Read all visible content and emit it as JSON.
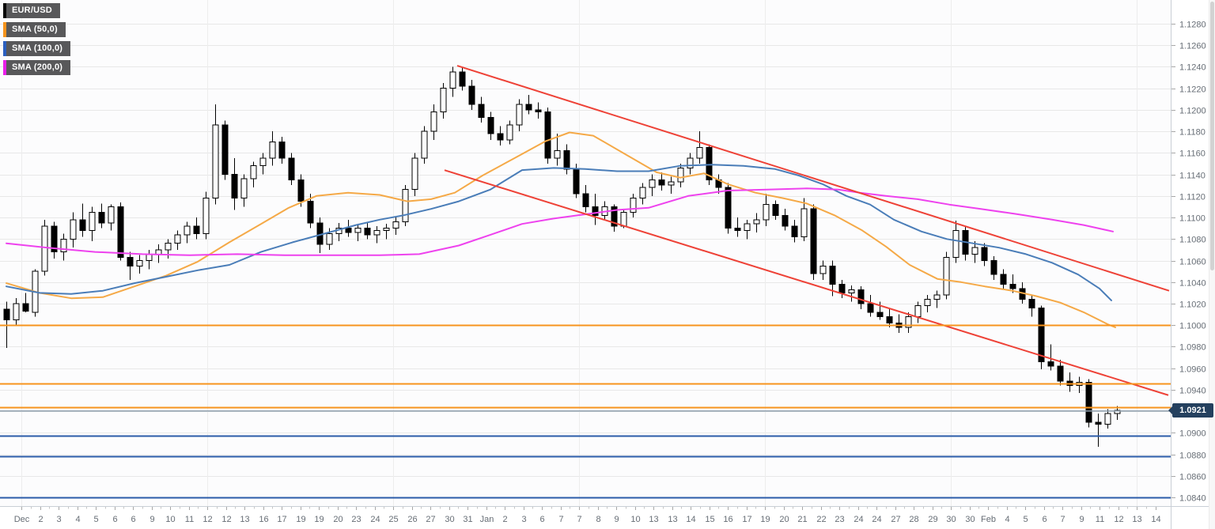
{
  "legend": {
    "items": [
      {
        "label": "EUR/USD",
        "accent_color": "#0a0a0a",
        "kind": "symbol"
      },
      {
        "label": "SMA (50,0)",
        "accent_color": "#f7941d",
        "kind": "indicator"
      },
      {
        "label": "SMA (100,0)",
        "accent_color": "#2b5fc0",
        "kind": "indicator"
      },
      {
        "label": "SMA (200,0)",
        "accent_color": "#e91fe9",
        "kind": "indicator"
      }
    ]
  },
  "price_axis": {
    "ticks": [
      "1.1280",
      "1.1260",
      "1.1240",
      "1.1220",
      "1.1200",
      "1.1180",
      "1.1160",
      "1.1140",
      "1.1120",
      "1.1100",
      "1.1080",
      "1.1060",
      "1.1040",
      "1.1020",
      "1.1000",
      "1.0980",
      "1.0960",
      "1.0940",
      "1.0920",
      "1.0900",
      "1.0880",
      "1.0860",
      "1.0840"
    ],
    "current_price": "1.0921",
    "badge_color": "#24405e",
    "tick_color": "#a7a7a7",
    "label_color": "#666d75"
  },
  "time_axis": {
    "labels": [
      "Dec",
      "2",
      "3",
      "4",
      "5",
      "6",
      "6",
      "9",
      "10",
      "11",
      "12",
      "12",
      "13",
      "16",
      "17",
      "19",
      "19",
      "20",
      "23",
      "24",
      "25",
      "26",
      "27",
      "30",
      "31",
      "Jan",
      "2",
      "3",
      "6",
      "7",
      "7",
      "8",
      "9",
      "10",
      "13",
      "13",
      "14",
      "15",
      "16",
      "17",
      "19",
      "20",
      "21",
      "22",
      "23",
      "24",
      "24",
      "27",
      "28",
      "29",
      "30",
      "30",
      "Feb",
      "4",
      "5",
      "6",
      "7",
      "9",
      "11",
      "12",
      "13",
      "14"
    ],
    "gridline_every": 10
  },
  "chart_data": {
    "type": "candlestick",
    "symbol": "EUR/USD",
    "ylabel": "price",
    "ylim": [
      1.0832,
      1.1302
    ],
    "grid": true,
    "up_color": "#ffffff",
    "down_color": "#000000",
    "outline_color": "#000000",
    "grid_color": "#e8e8e8",
    "vgrid_color": "#ededed",
    "plot_bg": "#fcfcfd",
    "candles": [
      [
        1.1015,
        1.1022,
        1.0979,
        1.1005
      ],
      [
        1.1005,
        1.1025,
        1.1,
        1.102
      ],
      [
        1.102,
        1.103,
        1.1012,
        1.1013
      ],
      [
        1.1012,
        1.1052,
        1.1008,
        1.105
      ],
      [
        1.105,
        1.1098,
        1.1046,
        1.1092
      ],
      [
        1.1092,
        1.1096,
        1.1062,
        1.1068
      ],
      [
        1.1068,
        1.1085,
        1.106,
        1.108
      ],
      [
        1.108,
        1.1105,
        1.1072,
        1.1098
      ],
      [
        1.1098,
        1.1113,
        1.1082,
        1.1088
      ],
      [
        1.1088,
        1.111,
        1.1078,
        1.1105
      ],
      [
        1.1105,
        1.1113,
        1.109,
        1.1095
      ],
      [
        1.1095,
        1.1112,
        1.1088,
        1.111
      ],
      [
        1.111,
        1.1114,
        1.106,
        1.1063
      ],
      [
        1.1063,
        1.1068,
        1.1042,
        1.1055
      ],
      [
        1.1055,
        1.1065,
        1.1048,
        1.106
      ],
      [
        1.106,
        1.107,
        1.1052,
        1.1066
      ],
      [
        1.1066,
        1.1075,
        1.1058,
        1.107
      ],
      [
        1.107,
        1.108,
        1.1062,
        1.1076
      ],
      [
        1.1076,
        1.1088,
        1.107,
        1.1084
      ],
      [
        1.1084,
        1.1096,
        1.1076,
        1.1092
      ],
      [
        1.1092,
        1.11,
        1.108,
        1.1085
      ],
      [
        1.1085,
        1.1124,
        1.108,
        1.1118
      ],
      [
        1.1118,
        1.1205,
        1.1112,
        1.1186
      ],
      [
        1.1186,
        1.119,
        1.1135,
        1.114
      ],
      [
        1.114,
        1.1155,
        1.1107,
        1.1118
      ],
      [
        1.1118,
        1.114,
        1.111,
        1.1136
      ],
      [
        1.1136,
        1.1152,
        1.1128,
        1.1148
      ],
      [
        1.1148,
        1.116,
        1.114,
        1.1155
      ],
      [
        1.1155,
        1.118,
        1.1148,
        1.117
      ],
      [
        1.117,
        1.1175,
        1.115,
        1.1155
      ],
      [
        1.1155,
        1.116,
        1.113,
        1.1135
      ],
      [
        1.1135,
        1.114,
        1.111,
        1.1115
      ],
      [
        1.1115,
        1.1122,
        1.109,
        1.1095
      ],
      [
        1.1095,
        1.11,
        1.1067,
        1.1075
      ],
      [
        1.1075,
        1.109,
        1.107,
        1.1085
      ],
      [
        1.1085,
        1.1095,
        1.1078,
        1.109
      ],
      [
        1.109,
        1.1098,
        1.1082,
        1.1086
      ],
      [
        1.1086,
        1.1094,
        1.1078,
        1.109
      ],
      [
        1.109,
        1.1096,
        1.108,
        1.1084
      ],
      [
        1.1084,
        1.1092,
        1.1076,
        1.1088
      ],
      [
        1.1088,
        1.1094,
        1.108,
        1.109
      ],
      [
        1.109,
        1.11,
        1.1084,
        1.1096
      ],
      [
        1.1096,
        1.113,
        1.1092,
        1.1126
      ],
      [
        1.1126,
        1.116,
        1.112,
        1.1155
      ],
      [
        1.1155,
        1.1185,
        1.115,
        1.118
      ],
      [
        1.118,
        1.1205,
        1.1172,
        1.1198
      ],
      [
        1.1198,
        1.1225,
        1.1192,
        1.122
      ],
      [
        1.122,
        1.124,
        1.1212,
        1.1235
      ],
      [
        1.1235,
        1.124,
        1.1218,
        1.1222
      ],
      [
        1.1222,
        1.1228,
        1.12,
        1.1205
      ],
      [
        1.1205,
        1.1212,
        1.1188,
        1.1193
      ],
      [
        1.1193,
        1.1198,
        1.1172,
        1.1178
      ],
      [
        1.1178,
        1.1185,
        1.1167,
        1.1172
      ],
      [
        1.1172,
        1.119,
        1.1168,
        1.1186
      ],
      [
        1.1186,
        1.121,
        1.118,
        1.1205
      ],
      [
        1.1205,
        1.1214,
        1.1196,
        1.12
      ],
      [
        1.12,
        1.1207,
        1.1192,
        1.1198
      ],
      [
        1.1198,
        1.1202,
        1.115,
        1.1155
      ],
      [
        1.1155,
        1.1178,
        1.1148,
        1.1162
      ],
      [
        1.1162,
        1.1168,
        1.114,
        1.1145
      ],
      [
        1.1145,
        1.115,
        1.1118,
        1.1122
      ],
      [
        1.1122,
        1.113,
        1.1105,
        1.111
      ],
      [
        1.111,
        1.1122,
        1.1093,
        1.1102
      ],
      [
        1.1102,
        1.1115,
        1.1098,
        1.111
      ],
      [
        1.111,
        1.1112,
        1.1087,
        1.1092
      ],
      [
        1.1092,
        1.1108,
        1.109,
        1.1105
      ],
      [
        1.1105,
        1.1122,
        1.11,
        1.1118
      ],
      [
        1.1118,
        1.1132,
        1.1112,
        1.1128
      ],
      [
        1.1128,
        1.114,
        1.112,
        1.1135
      ],
      [
        1.1135,
        1.1142,
        1.1125,
        1.113
      ],
      [
        1.113,
        1.1138,
        1.1122,
        1.1133
      ],
      [
        1.1133,
        1.115,
        1.1128,
        1.1146
      ],
      [
        1.1146,
        1.116,
        1.114,
        1.1155
      ],
      [
        1.1155,
        1.118,
        1.115,
        1.1165
      ],
      [
        1.1165,
        1.1168,
        1.113,
        1.1135
      ],
      [
        1.1135,
        1.114,
        1.1122,
        1.1128
      ],
      [
        1.1128,
        1.1132,
        1.1085,
        1.109
      ],
      [
        1.109,
        1.11,
        1.1082,
        1.1088
      ],
      [
        1.1088,
        1.1098,
        1.108,
        1.1094
      ],
      [
        1.1094,
        1.1104,
        1.1086,
        1.1098
      ],
      [
        1.1098,
        1.1122,
        1.1092,
        1.1112
      ],
      [
        1.1112,
        1.1116,
        1.1098,
        1.1102
      ],
      [
        1.1102,
        1.1108,
        1.1088,
        1.1092
      ],
      [
        1.1092,
        1.1098,
        1.1077,
        1.1082
      ],
      [
        1.1082,
        1.1118,
        1.1078,
        1.1108
      ],
      [
        1.1108,
        1.1112,
        1.1042,
        1.1048
      ],
      [
        1.1048,
        1.106,
        1.1042,
        1.1055
      ],
      [
        1.1055,
        1.106,
        1.1027,
        1.1038
      ],
      [
        1.1038,
        1.1042,
        1.1025,
        1.103
      ],
      [
        1.103,
        1.1037,
        1.1022,
        1.1033
      ],
      [
        1.1033,
        1.1036,
        1.1015,
        1.102
      ],
      [
        1.102,
        1.1028,
        1.1008,
        1.1012
      ],
      [
        1.1012,
        1.1022,
        1.1005,
        1.1008
      ],
      [
        1.1008,
        1.1015,
        1.0998,
        1.1002
      ],
      [
        1.1002,
        1.101,
        1.0993,
        1.0998
      ],
      [
        1.0998,
        1.1012,
        1.0993,
        1.1008
      ],
      [
        1.1008,
        1.1022,
        1.1002,
        1.1018
      ],
      [
        1.1018,
        1.1028,
        1.1012,
        1.1024
      ],
      [
        1.1024,
        1.1032,
        1.1016,
        1.1028
      ],
      [
        1.1028,
        1.1068,
        1.1024,
        1.1063
      ],
      [
        1.1063,
        1.1097,
        1.1058,
        1.1088
      ],
      [
        1.1088,
        1.1092,
        1.106,
        1.1066
      ],
      [
        1.1066,
        1.1078,
        1.1058,
        1.1072
      ],
      [
        1.1072,
        1.1076,
        1.1055,
        1.106
      ],
      [
        1.106,
        1.1064,
        1.1042,
        1.1047
      ],
      [
        1.1047,
        1.1052,
        1.1034,
        1.1038
      ],
      [
        1.1038,
        1.1047,
        1.103,
        1.1034
      ],
      [
        1.1034,
        1.104,
        1.102,
        1.1024
      ],
      [
        1.1024,
        1.1028,
        1.1008,
        1.1016
      ],
      [
        1.1016,
        1.1018,
        1.0959,
        1.0966
      ],
      [
        1.0966,
        1.0982,
        1.0958,
        1.0962
      ],
      [
        1.0962,
        1.0968,
        1.0944,
        1.0948
      ],
      [
        1.0948,
        1.0956,
        1.0938,
        1.0944
      ],
      [
        1.0944,
        1.0952,
        1.0937,
        1.0947
      ],
      [
        1.0947,
        1.095,
        1.0905,
        1.091
      ],
      [
        1.091,
        1.0918,
        1.0887,
        1.0908
      ],
      [
        1.0908,
        1.0922,
        1.0904,
        1.0918
      ],
      [
        1.0918,
        1.0925,
        1.0912,
        1.0921
      ]
    ],
    "series": [
      {
        "name": "SMA (50,0)",
        "color": "#f5a947",
        "points": [
          [
            8,
            1.1039
          ],
          [
            50,
            1.103
          ],
          [
            90,
            1.1025
          ],
          [
            130,
            1.1026
          ],
          [
            170,
            1.1036
          ],
          [
            210,
            1.1046
          ],
          [
            250,
            1.1059
          ],
          [
            290,
            1.1077
          ],
          [
            330,
            1.1094
          ],
          [
            365,
            1.1109
          ],
          [
            400,
            1.112
          ],
          [
            440,
            1.1123
          ],
          [
            480,
            1.1121
          ],
          [
            515,
            1.1115
          ],
          [
            545,
            1.1117
          ],
          [
            575,
            1.1123
          ],
          [
            610,
            1.1139
          ],
          [
            650,
            1.1155
          ],
          [
            690,
            1.1171
          ],
          [
            720,
            1.1179
          ],
          [
            750,
            1.1176
          ],
          [
            790,
            1.1159
          ],
          [
            830,
            1.1142
          ],
          [
            860,
            1.1137
          ],
          [
            890,
            1.1141
          ],
          [
            920,
            1.1131
          ],
          [
            955,
            1.1123
          ],
          [
            990,
            1.1118
          ],
          [
            1020,
            1.1113
          ],
          [
            1055,
            1.1102
          ],
          [
            1090,
            1.1088
          ],
          [
            1120,
            1.1073
          ],
          [
            1150,
            1.1056
          ],
          [
            1185,
            1.1043
          ],
          [
            1215,
            1.104
          ],
          [
            1245,
            1.1036
          ],
          [
            1280,
            1.1032
          ],
          [
            1310,
            1.1027
          ],
          [
            1340,
            1.1021
          ],
          [
            1370,
            1.1012
          ],
          [
            1400,
            1.1001
          ],
          [
            1410,
            1.0998
          ]
        ]
      },
      {
        "name": "SMA (100,0)",
        "color": "#4a7db8",
        "points": [
          [
            8,
            1.1036
          ],
          [
            50,
            1.103
          ],
          [
            90,
            1.1029
          ],
          [
            130,
            1.1032
          ],
          [
            170,
            1.1039
          ],
          [
            210,
            1.1045
          ],
          [
            250,
            1.1051
          ],
          [
            290,
            1.1056
          ],
          [
            330,
            1.1068
          ],
          [
            370,
            1.1077
          ],
          [
            410,
            1.1085
          ],
          [
            450,
            1.1093
          ],
          [
            480,
            1.1098
          ],
          [
            510,
            1.1102
          ],
          [
            545,
            1.1108
          ],
          [
            580,
            1.1115
          ],
          [
            620,
            1.1126
          ],
          [
            660,
            1.1144
          ],
          [
            700,
            1.1146
          ],
          [
            740,
            1.1145
          ],
          [
            780,
            1.1143
          ],
          [
            820,
            1.1143
          ],
          [
            860,
            1.1148
          ],
          [
            900,
            1.1149
          ],
          [
            940,
            1.1148
          ],
          [
            980,
            1.1145
          ],
          [
            1010,
            1.1139
          ],
          [
            1040,
            1.1131
          ],
          [
            1070,
            1.112
          ],
          [
            1100,
            1.1112
          ],
          [
            1130,
            1.1098
          ],
          [
            1165,
            1.1087
          ],
          [
            1197,
            1.108
          ],
          [
            1230,
            1.1076
          ],
          [
            1263,
            1.1072
          ],
          [
            1297,
            1.1066
          ],
          [
            1330,
            1.1058
          ],
          [
            1363,
            1.1047
          ],
          [
            1390,
            1.1034
          ],
          [
            1405,
            1.1023
          ]
        ]
      },
      {
        "name": "SMA (200,0)",
        "color": "#ee42ee",
        "points": [
          [
            8,
            1.1076
          ],
          [
            60,
            1.1072
          ],
          [
            120,
            1.1068
          ],
          [
            180,
            1.1066
          ],
          [
            240,
            1.1065
          ],
          [
            300,
            1.1066
          ],
          [
            360,
            1.1065
          ],
          [
            420,
            1.1065
          ],
          [
            480,
            1.1065
          ],
          [
            530,
            1.1066
          ],
          [
            580,
            1.1074
          ],
          [
            620,
            1.1084
          ],
          [
            660,
            1.1094
          ],
          [
            700,
            1.1099
          ],
          [
            740,
            1.1103
          ],
          [
            780,
            1.1107
          ],
          [
            820,
            1.1109
          ],
          [
            870,
            1.112
          ],
          [
            920,
            1.1125
          ],
          [
            970,
            1.1126
          ],
          [
            1020,
            1.1127
          ],
          [
            1060,
            1.1126
          ],
          [
            1087,
            1.1123
          ],
          [
            1120,
            1.112
          ],
          [
            1160,
            1.1117
          ],
          [
            1200,
            1.1112
          ],
          [
            1240,
            1.1108
          ],
          [
            1287,
            1.1103
          ],
          [
            1330,
            1.1098
          ],
          [
            1370,
            1.1093
          ],
          [
            1407,
            1.1087
          ]
        ]
      }
    ],
    "trendlines": [
      {
        "name": "channel-upper",
        "x1": 578,
        "p1": 1.1241,
        "x2": 1478,
        "p2": 1.1032,
        "color": "#ee4237"
      },
      {
        "name": "channel-lower",
        "x1": 562,
        "p1": 1.1144,
        "x2": 1477,
        "p2": 1.0935,
        "color": "#ee4237"
      }
    ],
    "levels": [
      {
        "price": 1.1,
        "color": "#f7941d"
      },
      {
        "price": 1.0946,
        "color": "#f7941d"
      },
      {
        "price": 1.0924,
        "color": "#f7941d"
      },
      {
        "price": 1.0897,
        "color": "#2b5ca9"
      },
      {
        "price": 1.0878,
        "color": "#2b5ca9"
      },
      {
        "price": 1.084,
        "color": "#2b5ca9"
      }
    ],
    "current_price": {
      "value": 1.0921,
      "line_color": "#8e9fae"
    }
  }
}
